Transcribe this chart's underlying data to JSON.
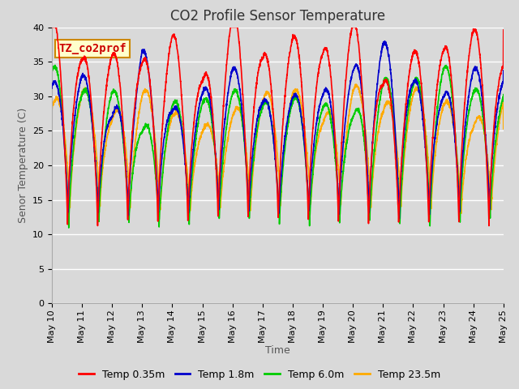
{
  "title": "CO2 Profile Sensor Temperature",
  "xlabel": "Time",
  "ylabel": "Senor Temperature (C)",
  "annotation": "TZ_co2prof",
  "ylim": [
    0,
    40
  ],
  "yticks": [
    0,
    5,
    10,
    15,
    20,
    25,
    30,
    35,
    40
  ],
  "xtick_labels": [
    "May 10",
    "May 11",
    "May 12",
    "May 13",
    "May 14",
    "May 15",
    "May 16",
    "May 17",
    "May 18",
    "May 19",
    "May 20",
    "May 21",
    "May 22",
    "May 23",
    "May 24",
    "May 25"
  ],
  "series_colors": [
    "#ff0000",
    "#0000cc",
    "#00cc00",
    "#ffaa00"
  ],
  "series_labels": [
    "Temp 0.35m",
    "Temp 1.8m",
    "Temp 6.0m",
    "Temp 23.5m"
  ],
  "line_width": 1.2,
  "bg_color": "#d9d9d9",
  "plot_bg_color": "#d9d9d9",
  "title_fontsize": 12,
  "label_fontsize": 9,
  "tick_fontsize": 8,
  "annotation_fontsize": 10,
  "annotation_color": "#cc0000",
  "annotation_bg": "#ffffcc",
  "annotation_border": "#cc8800",
  "figsize": [
    6.4,
    4.8
  ],
  "dpi": 100
}
